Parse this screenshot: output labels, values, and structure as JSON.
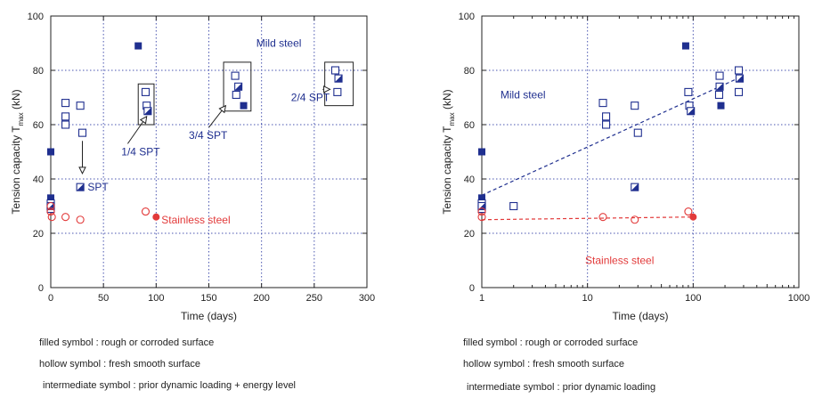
{
  "chart_data": [
    {
      "type": "scatter",
      "xlabel": "Time  (days)",
      "ylabel": "Tension capacity  T",
      "ylabel_sub": "max",
      "ylabel_unit": " (kN)",
      "xlim": [
        0,
        300
      ],
      "ylim": [
        0,
        100
      ],
      "xticks": [
        0,
        50,
        100,
        150,
        200,
        250,
        300
      ],
      "yticks": [
        0,
        20,
        40,
        60,
        80,
        100
      ],
      "grid": true,
      "series": [
        {
          "name": "filled symbol : rough or corroded surface",
          "marker": "square-filled",
          "color": "#1f2f8f",
          "points": [
            [
              0,
              50
            ],
            [
              83,
              89
            ],
            [
              183,
              67
            ],
            [
              0,
              33
            ]
          ]
        },
        {
          "name": "hollow symbol : fresh smooth surface",
          "marker": "square-open",
          "color": "#1f2f8f",
          "points": [
            [
              0,
              31
            ],
            [
              0,
              29
            ],
            [
              14,
              68
            ],
            [
              14,
              63
            ],
            [
              14,
              60
            ],
            [
              28,
              67
            ],
            [
              30,
              57
            ],
            [
              90,
              72
            ],
            [
              91,
              67
            ],
            [
              175,
              78
            ],
            [
              176,
              71
            ],
            [
              270,
              80
            ],
            [
              272,
              72
            ]
          ]
        },
        {
          "name": "intermediate symbol : prior dynamic loading + energy level",
          "marker": "square-half",
          "color": "#1f2f8f",
          "points": [
            [
              28,
              37
            ],
            [
              92,
              65
            ],
            [
              178,
              74
            ],
            [
              273,
              77
            ],
            [
              0,
              30
            ]
          ]
        },
        {
          "marker": "circle-open",
          "color": "#e23a3a",
          "points": [
            [
              0,
              30
            ],
            [
              0,
              28
            ],
            [
              1,
              26
            ],
            [
              14,
              26
            ],
            [
              28,
              25
            ],
            [
              90,
              28
            ]
          ]
        },
        {
          "marker": "circle-filled",
          "color": "#e23a3a",
          "points": [
            [
              100,
              26
            ]
          ]
        }
      ],
      "boxes": [
        {
          "x": [
            83,
            98
          ],
          "y": [
            60,
            75
          ]
        },
        {
          "x": [
            164,
            190
          ],
          "y": [
            65,
            83
          ]
        },
        {
          "x": [
            260,
            287
          ],
          "y": [
            67,
            83
          ]
        }
      ],
      "annotations": [
        {
          "text": "Mild steel",
          "x": 195,
          "y": 90,
          "color": "#1f2f8f"
        },
        {
          "text": "SPT",
          "x": 35,
          "y": 37,
          "color": "#1f2f8f"
        },
        {
          "text": "1/4 SPT",
          "x": 67,
          "y": 50,
          "color": "#1f2f8f"
        },
        {
          "text": "3/4 SPT",
          "x": 131,
          "y": 56,
          "color": "#1f2f8f"
        },
        {
          "text": "2/4 SPT",
          "x": 228,
          "y": 70,
          "color": "#1f2f8f"
        },
        {
          "text": "Stainless steel",
          "x": 105,
          "y": 25,
          "color": "#e23a3a"
        }
      ],
      "notes": [
        "filled symbol : rough or corroded surface",
        "hollow symbol : fresh smooth surface",
        "intermediate symbol : prior dynamic loading + energy level"
      ]
    },
    {
      "type": "scatter",
      "xlabel": "Time  (days)",
      "ylabel": "Tension capacity  T",
      "ylabel_sub": "max",
      "ylabel_unit": " (kN)",
      "xscale": "log",
      "xlim": [
        1,
        1000
      ],
      "ylim": [
        0,
        100
      ],
      "xticks": [
        1,
        10,
        100,
        1000
      ],
      "yticks": [
        0,
        20,
        40,
        60,
        80,
        100
      ],
      "grid": true,
      "series": [
        {
          "name": "filled symbol : rough or corroded surface",
          "marker": "square-filled",
          "color": "#1f2f8f",
          "points": [
            [
              1,
              50
            ],
            [
              85,
              89
            ],
            [
              183,
              67
            ],
            [
              1,
              33
            ]
          ]
        },
        {
          "name": "hollow symbol : fresh smooth surface",
          "marker": "square-open",
          "color": "#1f2f8f",
          "points": [
            [
              1,
              31
            ],
            [
              1,
              29
            ],
            [
              2,
              30
            ],
            [
              14,
              68
            ],
            [
              15,
              63
            ],
            [
              15,
              60
            ],
            [
              28,
              67
            ],
            [
              30,
              57
            ],
            [
              90,
              72
            ],
            [
              92,
              67
            ],
            [
              178,
              78
            ],
            [
              176,
              71
            ],
            [
              270,
              80
            ],
            [
              270,
              72
            ]
          ]
        },
        {
          "name": "intermediate symbol : prior dynamic loading",
          "marker": "square-half",
          "color": "#1f2f8f",
          "points": [
            [
              28,
              37
            ],
            [
              95,
              65
            ],
            [
              178,
              74
            ],
            [
              275,
              77
            ],
            [
              1,
              30
            ]
          ]
        },
        {
          "marker": "circle-open",
          "color": "#e23a3a",
          "points": [
            [
              1,
              28
            ],
            [
              1,
              26
            ],
            [
              14,
              26
            ],
            [
              28,
              25
            ],
            [
              90,
              28
            ]
          ]
        },
        {
          "marker": "circle-filled",
          "color": "#e23a3a",
          "points": [
            [
              100,
              26
            ]
          ]
        }
      ],
      "trendlines": [
        {
          "from": [
            1,
            34
          ],
          "to": [
            300,
            78
          ],
          "color": "#1f2f8f"
        },
        {
          "from": [
            1,
            25
          ],
          "to": [
            100,
            26
          ],
          "color": "#e23a3a"
        }
      ],
      "annotations": [
        {
          "text": "Mild steel",
          "x": 1.5,
          "y": 71,
          "color": "#1f2f8f"
        },
        {
          "text": "Stainless steel",
          "x": 9.5,
          "y": 10,
          "color": "#e23a3a"
        }
      ],
      "notes": [
        "filled symbol : rough or corroded surface",
        "hollow symbol : fresh smooth surface",
        "intermediate symbol : prior dynamic loading"
      ]
    }
  ]
}
